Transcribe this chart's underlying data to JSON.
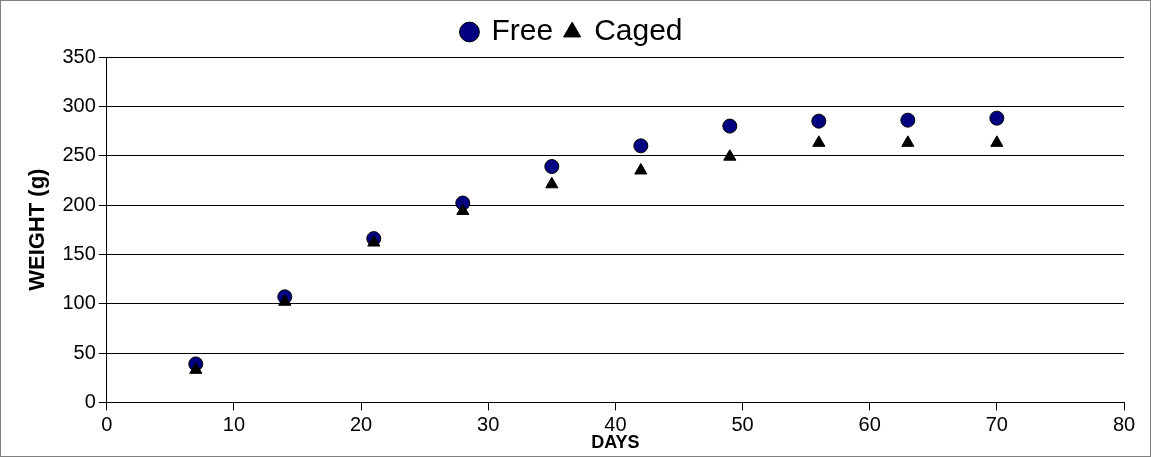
{
  "chart_data": {
    "type": "scatter",
    "xlabel": "DAYS",
    "ylabel": "WEIGHT (g)",
    "x": [
      7,
      14,
      21,
      28,
      35,
      42,
      49,
      56,
      63,
      70
    ],
    "series": [
      {
        "name": "Free",
        "color": "#000080",
        "marker": "circle",
        "values": [
          39,
          107,
          166,
          202,
          239,
          260,
          280,
          285,
          286,
          288
        ]
      },
      {
        "name": "Caged",
        "color": "#000000",
        "marker": "triangle",
        "values": [
          33,
          102,
          162,
          194,
          221,
          235,
          249,
          263,
          263,
          263
        ]
      }
    ],
    "xlim": [
      0,
      80
    ],
    "xticks": [
      0,
      10,
      20,
      30,
      40,
      50,
      60,
      70,
      80
    ],
    "ylim": [
      0,
      350
    ],
    "yticks": [
      0,
      50,
      100,
      150,
      200,
      250,
      300,
      350
    ],
    "grid": "y",
    "legend": "top"
  }
}
